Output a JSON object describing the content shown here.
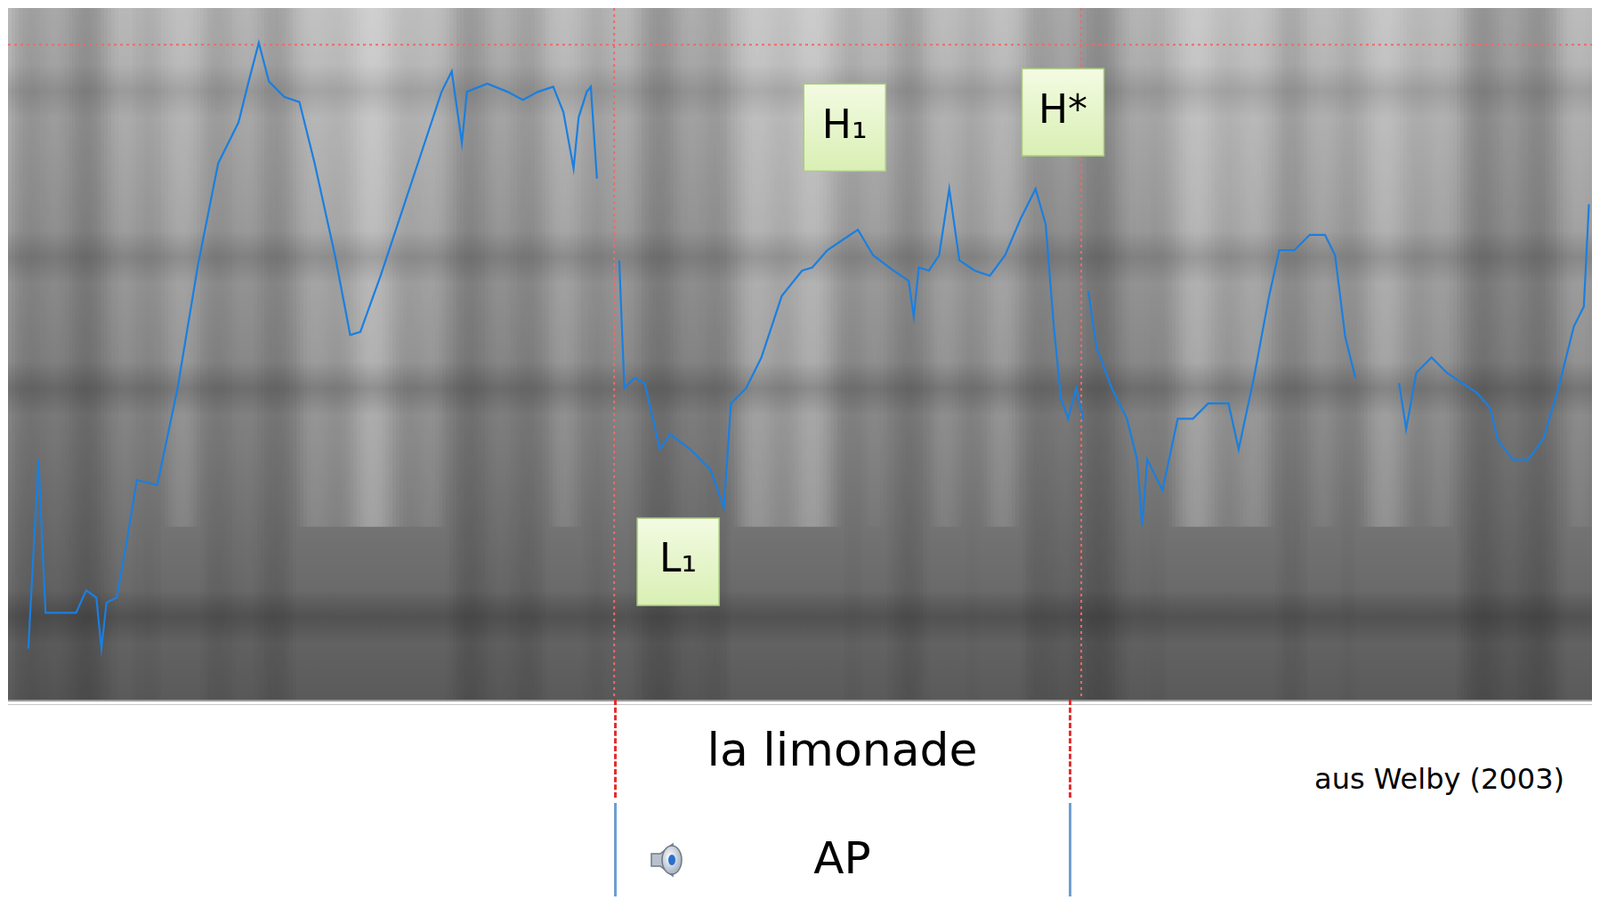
{
  "chart_data": {
    "type": "line",
    "x": [
      20,
      30,
      37,
      52,
      67,
      77,
      87,
      92,
      97,
      107,
      117,
      127,
      147,
      167,
      187,
      207,
      227,
      237,
      247,
      257,
      272,
      287,
      302,
      322,
      337,
      347,
      367,
      387,
      407,
      427,
      437,
      447,
      452,
      472,
      492,
      507,
      522,
      537,
      547,
      557,
      562,
      570,
      574,
      580,
      590,
      602,
      607,
      617,
      627,
      642,
      652,
      672,
      692,
      705,
      712,
      727,
      742,
      762,
      782,
      792,
      807,
      822,
      837,
      852,
      872,
      887,
      892,
      897,
      907,
      917,
      927,
      937,
      952,
      967,
      982,
      997,
      1012,
      1022,
      1030,
      1037,
      1044,
      1052,
      1059,
      1062,
      1064,
      1072,
      1087,
      1102,
      1112,
      1117,
      1122,
      1137,
      1152,
      1167,
      1182,
      1202,
      1212,
      1227,
      1242,
      1252,
      1267,
      1282,
      1297,
      1307,
      1317,
      1327,
      1350,
      1370,
      1377,
      1387,
      1402,
      1417,
      1432,
      1447,
      1460,
      1467,
      1482,
      1497,
      1512,
      1527,
      1542,
      1552,
      1557
    ],
    "values": [
      50,
      235,
      85,
      85,
      85,
      107,
      100,
      50,
      95,
      100,
      155,
      215,
      210,
      305,
      425,
      525,
      565,
      605,
      643,
      605,
      590,
      585,
      525,
      435,
      357,
      360,
      415,
      475,
      535,
      595,
      615,
      545,
      595,
      603,
      595,
      587,
      595,
      600,
      575,
      520,
      570,
      595,
      600,
      510,
      null,
      430,
      305,
      315,
      310,
      245,
      260,
      245,
      225,
      188,
      290,
      305,
      335,
      395,
      420,
      423,
      440,
      450,
      460,
      435,
      420,
      410,
      375,
      423,
      420,
      435,
      500,
      430,
      420,
      415,
      435,
      470,
      500,
      465,
      365,
      295,
      275,
      305,
      275,
      null,
      400,
      345,
      305,
      275,
      235,
      170,
      235,
      205,
      275,
      275,
      290,
      290,
      245,
      315,
      395,
      440,
      440,
      455,
      455,
      435,
      355,
      315,
      null,
      310,
      265,
      320,
      335,
      320,
      310,
      300,
      285,
      255,
      235,
      235,
      255,
      305,
      365,
      385,
      485
    ],
    "color": "#1a7fe0",
    "xlim": [
      0,
      1560
    ],
    "ylim": [
      0,
      677
    ],
    "tick_labels": false,
    "grid": false,
    "reference_lines": {
      "x": [
        597,
        1057
      ],
      "y": [
        641
      ]
    },
    "annotations": [
      {
        "text": "L₁",
        "x": 660,
        "y": 135
      },
      {
        "text": "H₁",
        "x": 824,
        "y": 560
      },
      {
        "text": "H*",
        "x": 1039,
        "y": 575
      }
    ],
    "segment_label": "la limonade",
    "phrase_label": "AP",
    "source": "aus Welby (2003)"
  }
}
